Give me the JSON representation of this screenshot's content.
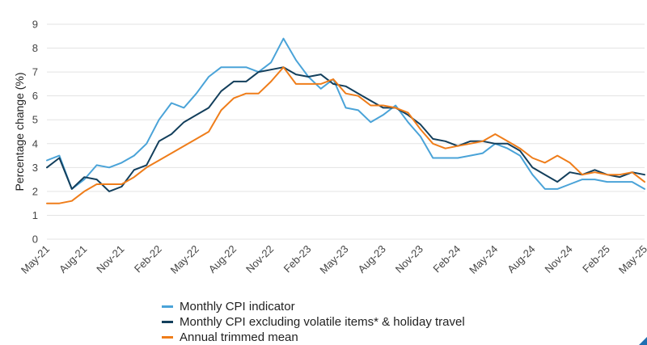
{
  "colors": {
    "s1": "#4aa3d8",
    "s2": "#133f5c",
    "s3": "#ef7d1a",
    "grid": "#e3e3e3",
    "corner": "#1f6fb2"
  },
  "chart_data": {
    "type": "line",
    "ylabel": "Percentage change (%)",
    "xlabel": "",
    "ylim": [
      0,
      9
    ],
    "yticks": [
      0,
      1,
      2,
      3,
      4,
      5,
      6,
      7,
      8,
      9
    ],
    "grid": true,
    "legend_position": "bottom",
    "x": [
      "May-21",
      "Jun-21",
      "Jul-21",
      "Aug-21",
      "Sep-21",
      "Oct-21",
      "Nov-21",
      "Dec-21",
      "Jan-22",
      "Feb-22",
      "Mar-22",
      "Apr-22",
      "May-22",
      "Jun-22",
      "Jul-22",
      "Aug-22",
      "Sep-22",
      "Oct-22",
      "Nov-22",
      "Dec-22",
      "Jan-23",
      "Feb-23",
      "Mar-23",
      "Apr-23",
      "May-23",
      "Jun-23",
      "Jul-23",
      "Aug-23",
      "Sep-23",
      "Oct-23",
      "Nov-23",
      "Dec-23",
      "Jan-24",
      "Feb-24",
      "Mar-24",
      "Apr-24",
      "May-24",
      "Jun-24",
      "Jul-24",
      "Aug-24",
      "Sep-24",
      "Oct-24",
      "Nov-24",
      "Dec-24",
      "Jan-25",
      "Feb-25",
      "Mar-25",
      "Apr-25",
      "May-25"
    ],
    "xtick_labels": [
      "May-21",
      "Aug-21",
      "Nov-21",
      "Feb-22",
      "May-22",
      "Aug-22",
      "Nov-22",
      "Feb-23",
      "May-23",
      "Aug-23",
      "Nov-23",
      "Feb-24",
      "May-24",
      "Aug-24",
      "Nov-24",
      "Feb-25",
      "May-25"
    ],
    "series": [
      {
        "name": "Monthly CPI indicator",
        "color": "#4aa3d8",
        "values": [
          3.3,
          3.5,
          2.1,
          2.5,
          3.1,
          3.0,
          3.2,
          3.5,
          4.0,
          5.0,
          5.7,
          5.5,
          6.1,
          6.8,
          7.2,
          7.2,
          7.2,
          7.0,
          7.4,
          8.4,
          7.5,
          6.8,
          6.3,
          6.7,
          5.5,
          5.4,
          4.9,
          5.2,
          5.6,
          4.9,
          4.3,
          3.4,
          3.4,
          3.4,
          3.5,
          3.6,
          4.0,
          3.8,
          3.5,
          2.7,
          2.1,
          2.1,
          2.3,
          2.5,
          2.5,
          2.4,
          2.4,
          2.4,
          2.1
        ]
      },
      {
        "name": "Monthly CPI excluding volatile items* & holiday travel",
        "color": "#133f5c",
        "values": [
          3.0,
          3.4,
          2.1,
          2.6,
          2.5,
          2.0,
          2.2,
          2.9,
          3.1,
          4.1,
          4.4,
          4.9,
          5.2,
          5.5,
          6.2,
          6.6,
          6.6,
          7.0,
          7.1,
          7.2,
          6.9,
          6.8,
          6.9,
          6.5,
          6.4,
          6.1,
          5.8,
          5.5,
          5.5,
          5.2,
          4.8,
          4.2,
          4.1,
          3.9,
          4.1,
          4.1,
          4.0,
          4.0,
          3.7,
          3.0,
          2.7,
          2.4,
          2.8,
          2.7,
          2.9,
          2.7,
          2.6,
          2.8,
          2.7
        ]
      },
      {
        "name": "Annual trimmed mean",
        "color": "#ef7d1a",
        "values": [
          1.5,
          1.5,
          1.6,
          2.0,
          2.3,
          2.3,
          2.3,
          2.6,
          3.0,
          3.3,
          3.6,
          3.9,
          4.2,
          4.5,
          5.4,
          5.9,
          6.1,
          6.1,
          6.6,
          7.2,
          6.5,
          6.5,
          6.5,
          6.7,
          6.1,
          6.0,
          5.6,
          5.6,
          5.5,
          5.3,
          4.6,
          4.0,
          3.8,
          3.9,
          4.0,
          4.1,
          4.4,
          4.1,
          3.8,
          3.4,
          3.2,
          3.5,
          3.2,
          2.7,
          2.8,
          2.7,
          2.7,
          2.8,
          2.4
        ]
      }
    ]
  }
}
